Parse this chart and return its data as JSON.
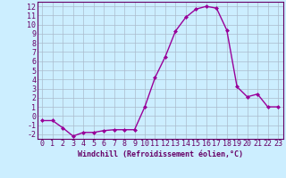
{
  "x": [
    0,
    1,
    2,
    3,
    4,
    5,
    6,
    7,
    8,
    9,
    10,
    11,
    12,
    13,
    14,
    15,
    16,
    17,
    18,
    19,
    20,
    21,
    22,
    23
  ],
  "y": [
    -0.5,
    -0.5,
    -1.3,
    -2.2,
    -1.8,
    -1.8,
    -1.6,
    -1.5,
    -1.5,
    -1.5,
    1.0,
    4.2,
    6.5,
    9.3,
    10.8,
    11.7,
    12.0,
    11.8,
    9.4,
    3.2,
    2.1,
    2.4,
    1.0,
    1.0
  ],
  "line_color": "#990099",
  "marker": "D",
  "marker_size": 2,
  "bg_color": "#cceeff",
  "grid_color": "#aabbcc",
  "xlabel": "Windchill (Refroidissement éolien,°C)",
  "xlim": [
    -0.5,
    23.5
  ],
  "ylim": [
    -2.5,
    12.5
  ],
  "yticks": [
    -2,
    -1,
    0,
    1,
    2,
    3,
    4,
    5,
    6,
    7,
    8,
    9,
    10,
    11,
    12
  ],
  "xticks": [
    0,
    1,
    2,
    3,
    4,
    5,
    6,
    7,
    8,
    9,
    10,
    11,
    12,
    13,
    14,
    15,
    16,
    17,
    18,
    19,
    20,
    21,
    22,
    23
  ],
  "axis_color": "#660066",
  "tick_color": "#660066",
  "label_color": "#660066",
  "label_fontsize": 6,
  "tick_fontsize": 6,
  "line_width": 1.0
}
